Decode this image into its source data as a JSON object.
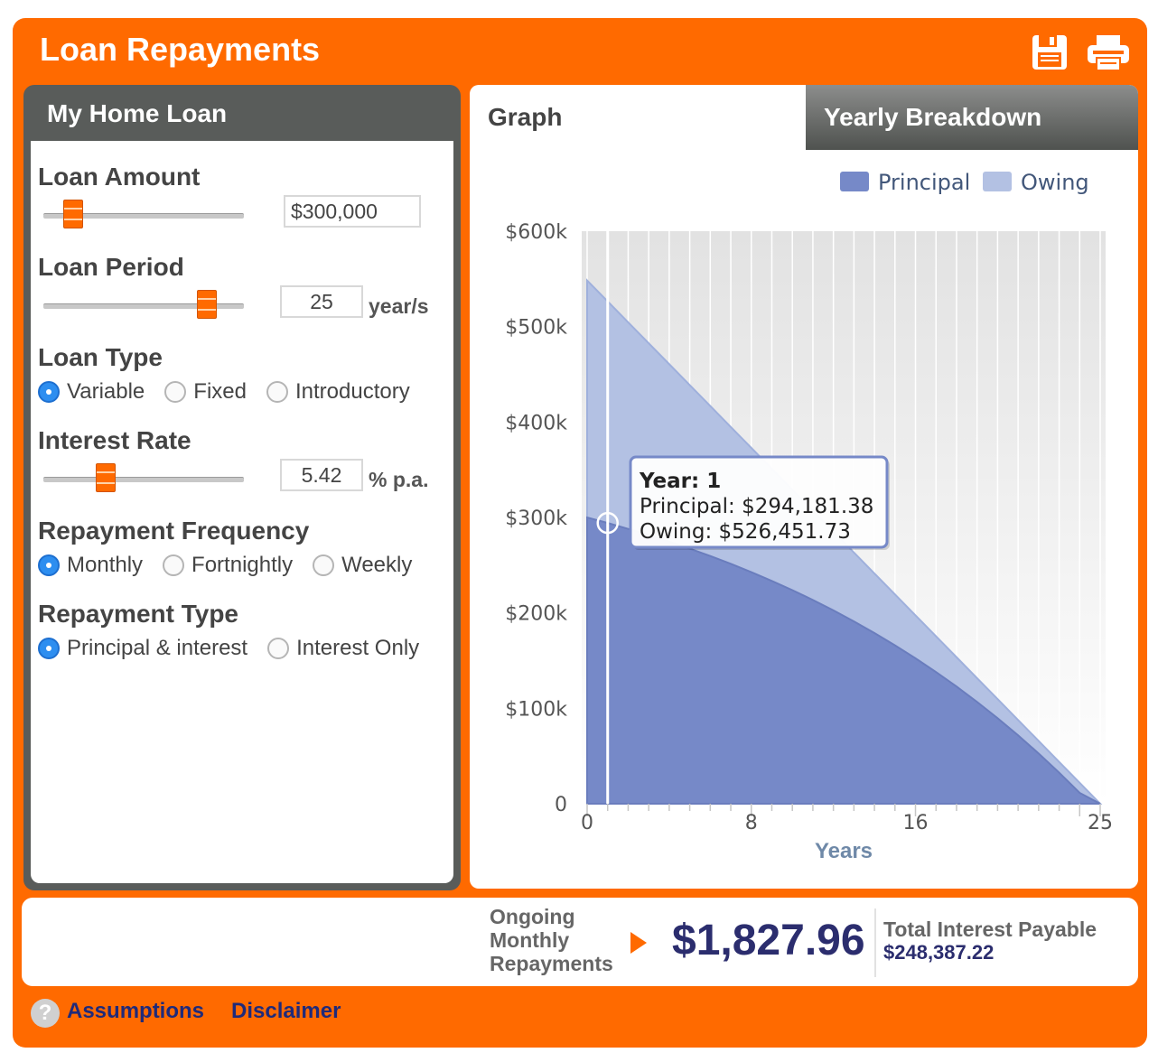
{
  "header": {
    "title": "Loan Repayments"
  },
  "toolbar": {
    "save_icon": "floppy-disk-icon",
    "print_icon": "printer-icon"
  },
  "left_panel": {
    "title": "My Home Loan",
    "loan_amount": {
      "label": "Loan Amount",
      "value": "$300,000",
      "slider_fraction": 0.11
    },
    "loan_period": {
      "label": "Loan Period",
      "value": "25",
      "unit": "year/s",
      "slider_fraction": 0.85
    },
    "loan_type": {
      "label": "Loan Type",
      "options": [
        "Variable",
        "Fixed",
        "Introductory"
      ],
      "selected": "Variable"
    },
    "interest_rate": {
      "label": "Interest Rate",
      "value": "5.42",
      "unit": "% p.a.",
      "slider_fraction": 0.29
    },
    "repayment_frequency": {
      "label": "Repayment Frequency",
      "options": [
        "Monthly",
        "Fortnightly",
        "Weekly"
      ],
      "selected": "Monthly"
    },
    "repayment_type": {
      "label": "Repayment Type",
      "options": [
        "Principal & interest",
        "Interest Only"
      ],
      "selected": "Principal & interest"
    }
  },
  "tabs": {
    "graph": "Graph",
    "yearly_breakdown": "Yearly Breakdown",
    "active": "Graph"
  },
  "chart_data": {
    "type": "area",
    "xlabel": "Years",
    "ylabel": "",
    "xlim": [
      0,
      25
    ],
    "ylim": [
      0,
      600000
    ],
    "x_ticks": [
      "0",
      "8",
      "16",
      "25"
    ],
    "y_ticks": [
      "0",
      "$100k",
      "$200k",
      "$300k",
      "$400k",
      "$500k",
      "$600k"
    ],
    "legend": {
      "placement": "top-right",
      "items": [
        "Principal",
        "Owing"
      ]
    },
    "colors": {
      "Principal": "#7689c8",
      "Owing": "#b3c1e3"
    },
    "x": [
      0,
      1,
      2,
      3,
      4,
      5,
      6,
      7,
      8,
      9,
      10,
      11,
      12,
      13,
      14,
      15,
      16,
      17,
      18,
      19,
      20,
      21,
      22,
      23,
      24,
      25
    ],
    "series": [
      {
        "name": "Principal",
        "values": [
          300000,
          294181.38,
          288000,
          281500,
          274600,
          267300,
          259600,
          251400,
          242700,
          233500,
          223800,
          213500,
          202600,
          191100,
          178900,
          166000,
          152400,
          138000,
          122800,
          106700,
          89700,
          71700,
          52700,
          32600,
          11400,
          0
        ]
      },
      {
        "name": "Owing",
        "values": [
          548387.22,
          526451.73,
          504516,
          482580,
          460645,
          438709,
          416774,
          394838,
          372903,
          350967,
          329032,
          307096,
          285161,
          263225,
          241290,
          219354,
          197419,
          175483,
          153548,
          131612,
          109677,
          87741,
          65806,
          43870,
          21935,
          0
        ]
      }
    ],
    "tooltip": {
      "year_label": "Year: 1",
      "principal_label": "Principal: $294,181.38",
      "owing_label": "Owing: $526,451.73",
      "x": 1
    }
  },
  "summary": {
    "label": "Ongoing Monthly Repayments",
    "amount": "$1,827.96",
    "interest_label": "Total Interest Payable",
    "interest_value": "$248,387.22"
  },
  "footer": {
    "assumptions": "Assumptions",
    "disclaimer": "Disclaimer",
    "help_icon": "?"
  }
}
